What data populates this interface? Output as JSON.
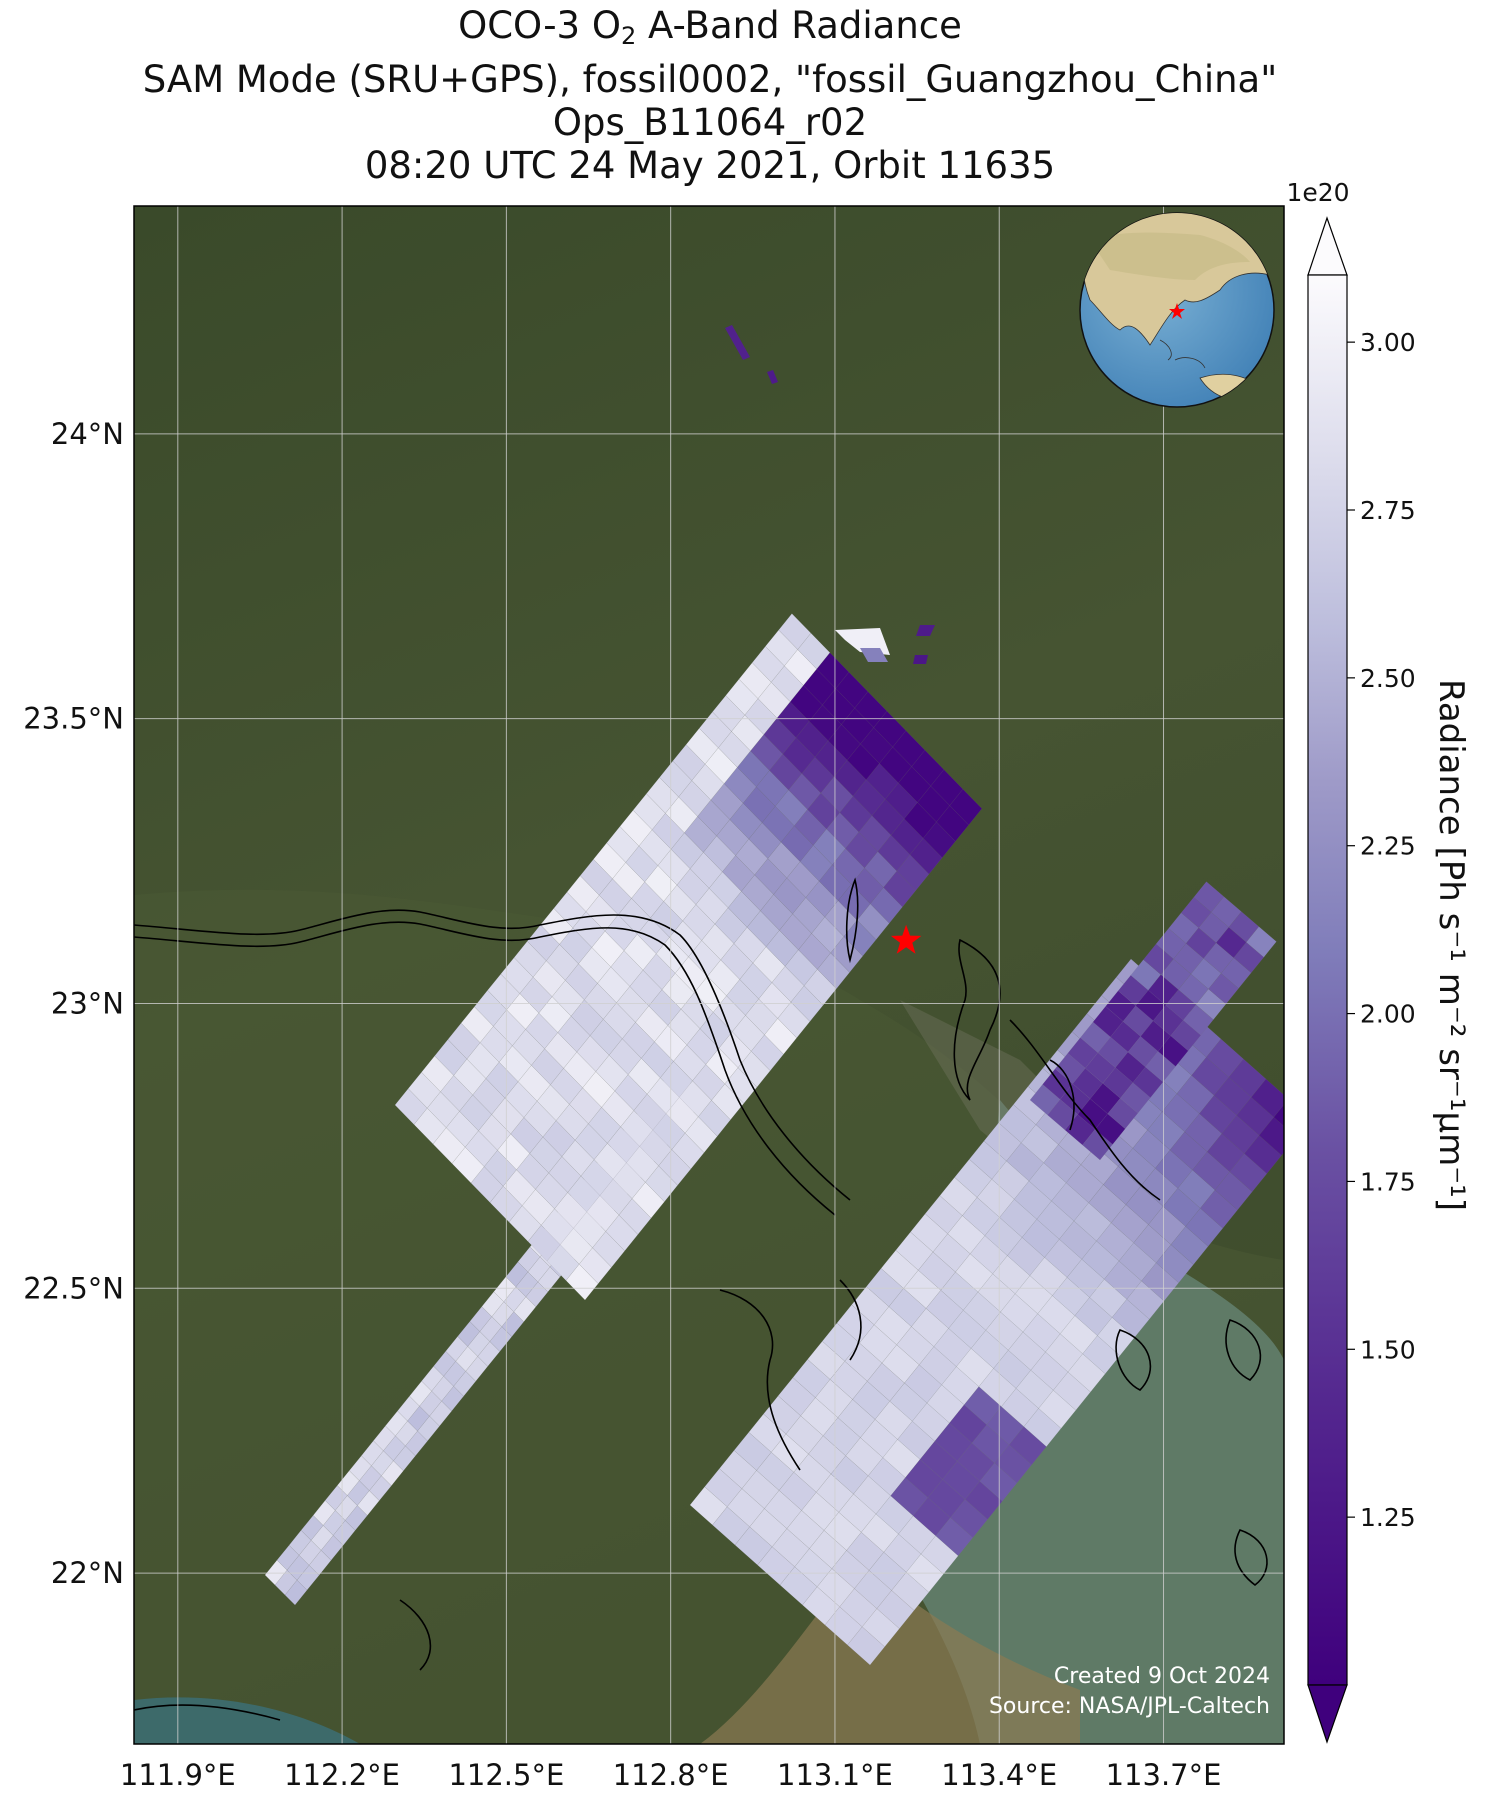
{
  "title": {
    "line1_prefix": "OCO-3 O",
    "line1_sub": "2",
    "line1_suffix": " A-Band Radiance",
    "line2": "SAM Mode (SRU+GPS), fossil0002, \"fossil_Guangzhou_China\"",
    "line3": "Ops_B11064_r02",
    "line4": "08:20 UTC 24 May 2021, Orbit 11635"
  },
  "map": {
    "type": "map",
    "lon_range": [
      111.82,
      113.92
    ],
    "lat_range": [
      21.7,
      24.4
    ],
    "lon_ticks": [
      111.9,
      112.2,
      112.5,
      112.8,
      113.1,
      113.4,
      113.7
    ],
    "lon_tick_labels": [
      "111.9°E",
      "112.2°E",
      "112.5°E",
      "112.8°E",
      "113.1°E",
      "113.4°E",
      "113.7°E"
    ],
    "lat_ticks": [
      22.0,
      22.5,
      23.0,
      23.5,
      24.0
    ],
    "lat_tick_labels": [
      "22°N",
      "22.5°N",
      "23°N",
      "23.5°N",
      "24°N"
    ],
    "grid": true,
    "target_marker": {
      "label": "fossil_Guangzhou_China",
      "lon": 113.23,
      "lat": 23.11,
      "color": "#ff0000"
    },
    "inset_globe": true,
    "credit_line1": "Created 9 Oct 2024",
    "credit_line2": "Source: NASA/JPL-Caltech"
  },
  "colorbar": {
    "exponent_label": "1e20",
    "label": "Radiance [Ph s⁻¹ m⁻² sr⁻¹μm⁻¹]",
    "ticks": [
      1.25,
      1.5,
      1.75,
      2.0,
      2.25,
      2.5,
      2.75,
      3.0
    ],
    "tick_labels": [
      "1.25",
      "1.50",
      "1.75",
      "2.00",
      "2.25",
      "2.50",
      "2.75",
      "3.00"
    ],
    "range": [
      1.0,
      3.1
    ],
    "extend": "both",
    "colormap": "Purples_r",
    "color_low": "#3f007d",
    "color_high": "#fcfbfd"
  },
  "colors": {
    "land": "#3d4a2c",
    "water": "#5a7a6a",
    "gridline": "#d0d0d0",
    "coastline": "#000000"
  }
}
